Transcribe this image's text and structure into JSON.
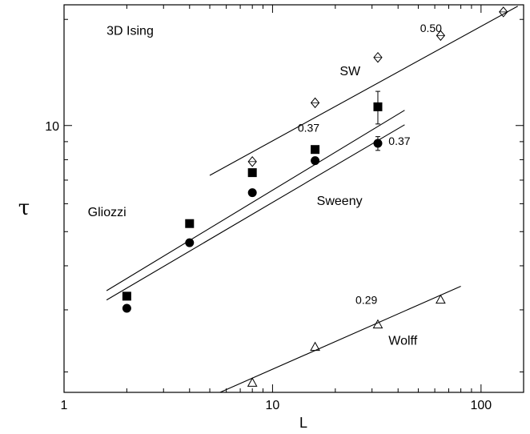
{
  "chart_data": {
    "type": "scatter",
    "title": "3D Ising",
    "xlabel": "L",
    "ylabel": "τ",
    "xscale": "log",
    "yscale": "log",
    "xlim": [
      1,
      160
    ],
    "ylim": [
      1.75,
      22
    ],
    "xticks": [
      1,
      10,
      100
    ],
    "xtick_labels": [
      "1",
      "10",
      "100"
    ],
    "yticks": [
      10
    ],
    "ytick_labels": [
      "10"
    ],
    "series": [
      {
        "name": "SW",
        "marker": "diamond-cross",
        "fill": "none",
        "points": [
          {
            "x": 8,
            "y": 7.9
          },
          {
            "x": 16,
            "y": 11.6
          },
          {
            "x": 32,
            "y": 15.6
          },
          {
            "x": 64,
            "y": 18.0
          },
          {
            "x": 128,
            "y": 21.0
          }
        ]
      },
      {
        "name": "Gliozzi",
        "marker": "square",
        "fill": "#000000",
        "points": [
          {
            "x": 2,
            "y": 3.28
          },
          {
            "x": 4,
            "y": 5.27
          },
          {
            "x": 8,
            "y": 7.35
          },
          {
            "x": 16,
            "y": 8.55
          },
          {
            "x": 32,
            "y": 11.3,
            "err": 1.2
          }
        ]
      },
      {
        "name": "Sweeny",
        "marker": "circle",
        "fill": "#000000",
        "points": [
          {
            "x": 2,
            "y": 3.03
          },
          {
            "x": 4,
            "y": 4.65
          },
          {
            "x": 8,
            "y": 6.45
          },
          {
            "x": 16,
            "y": 7.95
          },
          {
            "x": 32,
            "y": 8.9,
            "err": 0.4
          }
        ]
      },
      {
        "name": "Wolff",
        "marker": "triangle",
        "fill": "none",
        "points": [
          {
            "x": 8,
            "y": 1.86
          },
          {
            "x": 16,
            "y": 2.35
          },
          {
            "x": 32,
            "y": 2.72
          },
          {
            "x": 64,
            "y": 3.2
          }
        ]
      }
    ],
    "fit_lines": [
      {
        "name": "SW",
        "x": [
          5,
          150
        ],
        "y": [
          7.22,
          21.8
        ]
      },
      {
        "name": "Gliozzi",
        "x": [
          1.6,
          43
        ],
        "y": [
          3.4,
          11.05
        ]
      },
      {
        "name": "Sweeny",
        "x": [
          1.6,
          43
        ],
        "y": [
          3.2,
          10.05
        ]
      },
      {
        "name": "Wolff",
        "x": [
          5.6,
          80
        ],
        "y": [
          1.75,
          3.5
        ]
      }
    ],
    "annotations": [
      {
        "text": "3D Ising",
        "x": 1.6,
        "y": 18.1,
        "size": "large"
      },
      {
        "text": "0.50",
        "x": 51,
        "y": 18.4,
        "size": "small"
      },
      {
        "text": "SW",
        "x": 21,
        "y": 13.9,
        "size": "large"
      },
      {
        "text": "0.37",
        "x": 13.2,
        "y": 9.6,
        "size": "small"
      },
      {
        "text": "0.37",
        "x": 36,
        "y": 8.8,
        "size": "small"
      },
      {
        "text": "Gliozzi",
        "x": 1.3,
        "y": 5.53,
        "size": "large"
      },
      {
        "text": "Sweeny",
        "x": 16.3,
        "y": 5.95,
        "size": "large"
      },
      {
        "text": "0.29",
        "x": 25,
        "y": 3.12,
        "size": "small"
      },
      {
        "text": "Wolff",
        "x": 36,
        "y": 2.39,
        "size": "large"
      }
    ]
  }
}
